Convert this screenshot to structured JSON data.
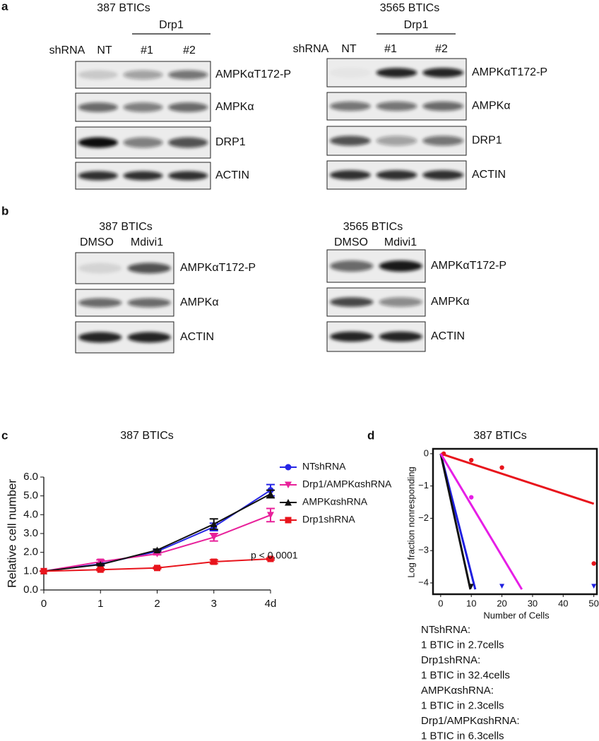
{
  "panel_a": {
    "label": "a",
    "blots": [
      {
        "title": "387 BTICs",
        "group": "Drp1",
        "shrna": "shRNA",
        "lanes": [
          "NT",
          "#1",
          "#2"
        ],
        "rows": [
          "AMPKαT172-P",
          "AMPKα",
          "DRP1",
          "ACTIN"
        ]
      },
      {
        "title": "3565 BTICs",
        "group": "Drp1",
        "shrna": "shRNA",
        "lanes": [
          "NT",
          "#1",
          "#2"
        ],
        "rows": [
          "AMPKαT172-P",
          "AMPKα",
          "DRP1",
          "ACTIN"
        ]
      }
    ]
  },
  "panel_b": {
    "label": "b",
    "blots": [
      {
        "title": "387 BTICs",
        "lanes": [
          "DMSO",
          "Mdivi1"
        ],
        "rows": [
          "AMPKαT172-P",
          "AMPKα",
          "ACTIN"
        ]
      },
      {
        "title": "3565 BTICs",
        "lanes": [
          "DMSO",
          "Mdivi1"
        ],
        "rows": [
          "AMPKαT172-P",
          "AMPKα",
          "ACTIN"
        ]
      }
    ]
  },
  "chart_data": [
    {
      "type": "line",
      "label": "c",
      "title": "387 BTICs",
      "ylabel": "Relative cell number",
      "x": [
        0,
        1,
        2,
        3,
        4
      ],
      "xlim": [
        0,
        4
      ],
      "xticks": [
        0,
        1,
        2,
        3,
        {
          "value": 4,
          "label": "4d"
        }
      ],
      "ylim": [
        0,
        6
      ],
      "yticks": [
        {
          "value": 0,
          "label": "0.0"
        },
        {
          "value": 1,
          "label": "1.0"
        },
        {
          "value": 2,
          "label": "2.0"
        },
        {
          "value": 3,
          "label": "3.0"
        },
        {
          "value": 4,
          "label": "4.0"
        },
        {
          "value": 5,
          "label": "5.0"
        },
        {
          "value": 6,
          "label": "6.0"
        }
      ],
      "series": [
        {
          "name": "NTshRNA",
          "color": "#2626e6",
          "marker": "circle",
          "values": [
            1,
            1.38,
            2.05,
            3.35,
            5.3
          ],
          "errors": [
            0,
            0.05,
            0.05,
            0.2,
            0.3
          ]
        },
        {
          "name": "Drp1/AMPKαshRNA",
          "color": "#e8219a",
          "marker": "triangle-down",
          "values": [
            1,
            1.5,
            1.92,
            2.8,
            3.98
          ],
          "errors": [
            0,
            0.1,
            0.05,
            0.2,
            0.35
          ]
        },
        {
          "name": "AMPKαshRNA",
          "color": "#111111",
          "marker": "triangle-up",
          "values": [
            1,
            1.35,
            2.12,
            3.5,
            5.1
          ],
          "errors": [
            0,
            0.05,
            0.05,
            0.28,
            0.2
          ]
        },
        {
          "name": "Drp1shRNA",
          "color": "#e8141c",
          "marker": "square",
          "values": [
            1,
            1.08,
            1.17,
            1.5,
            1.65
          ],
          "errors": [
            0,
            0.05,
            0.05,
            0.1,
            0.05
          ]
        }
      ],
      "annotation": "p < 0.0001"
    },
    {
      "type": "scatter",
      "label": "d",
      "title": "387 BTICs",
      "xlabel": "Number of Cells",
      "ylabel": "Log fraction nonresponding",
      "xlim": [
        -2.5,
        51
      ],
      "xticks": [
        0,
        10,
        20,
        30,
        40,
        50
      ],
      "ylim": [
        -4.35,
        0.15
      ],
      "yticks": [
        0,
        {
          "value": -1,
          "label": "−1"
        },
        {
          "value": -2,
          "label": "−2"
        },
        {
          "value": -3,
          "label": "−3"
        },
        {
          "value": -4,
          "label": "−4"
        }
      ],
      "series": [
        {
          "name": "NTshRNA:",
          "estimate": "1 BTIC in 2.7cells",
          "color": "#1f1fe0",
          "marker": "triangle-down",
          "x": [
            10,
            20,
            50
          ],
          "values": [
            -4.1,
            -4.1,
            -4.1
          ],
          "fit": {
            "x": [
              0,
              11.3
            ],
            "values": [
              0,
              -4.2
            ]
          }
        },
        {
          "name": "Drp1shRNA:",
          "estimate": "1 BTIC in 32.4cells",
          "color": "#e8141c",
          "marker": "circle",
          "x": [
            1,
            10,
            20,
            50
          ],
          "values": [
            0,
            -0.2,
            -0.43,
            -3.4
          ],
          "fit": {
            "x": [
              0,
              50
            ],
            "values": [
              0,
              -1.55
            ]
          }
        },
        {
          "name": "AMPKαshRNA:",
          "estimate": "1 BTIC in 2.3cells",
          "color": "#111111",
          "marker": "triangle-down",
          "x": [
            10
          ],
          "values": [
            -4.1
          ],
          "fit": {
            "x": [
              0,
              9.7
            ],
            "values": [
              0,
              -4.2
            ]
          }
        },
        {
          "name": "Drp1/AMPKαshRNA:",
          "estimate": "1 BTIC in 6.3cells",
          "color": "#e61ee6",
          "marker": "circle",
          "x": [
            10
          ],
          "values": [
            -1.35
          ],
          "fit": {
            "x": [
              0,
              26.5
            ],
            "values": [
              0,
              -4.2
            ]
          }
        }
      ]
    }
  ]
}
